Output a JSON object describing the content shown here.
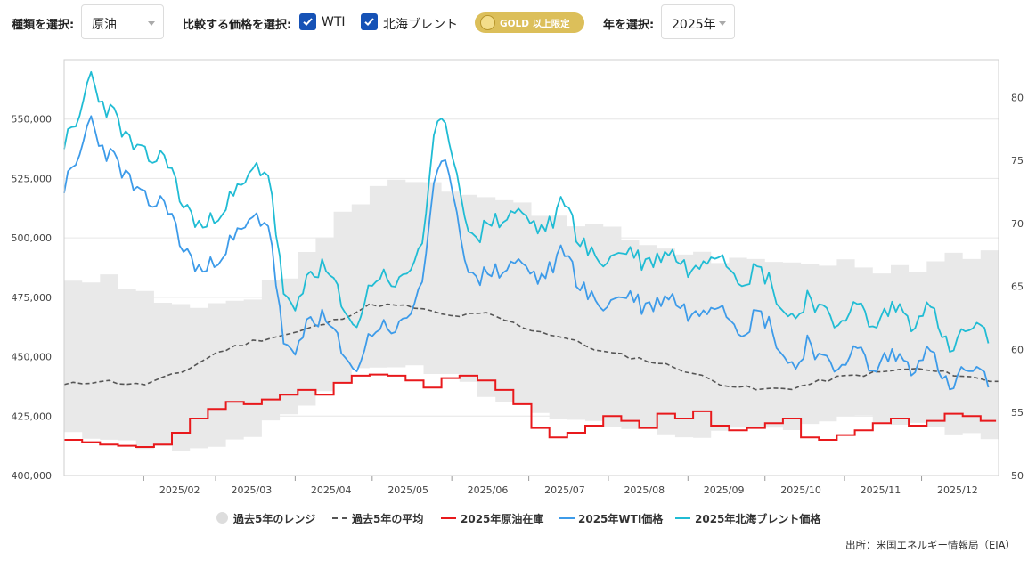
{
  "controls": {
    "type_label": "種類を選択:",
    "type_value": "原油",
    "compare_label": "比較する価格を選択:",
    "wti_label": "WTI",
    "wti_checked": true,
    "brent_label": "北海ブレント",
    "brent_checked": true,
    "gold_badge": "GOLD 以上限定",
    "year_label": "年を選択:",
    "year_value": "2025年"
  },
  "colors": {
    "range": "#e9e9e9",
    "average": "#555555",
    "inventory": "#e8191c",
    "wti": "#3d9be9",
    "brent": "#20bcd4",
    "checkbox": "#1652b6",
    "gold": "#dcbf5a"
  },
  "chart_data": {
    "type": "line",
    "x_ticks": [
      "2025/02",
      "2025/03",
      "2025/04",
      "2025/05",
      "2025/06",
      "2025/07",
      "2025/08",
      "2025/09",
      "2025/10",
      "2025/11",
      "2025/12"
    ],
    "y_left": {
      "ticks": [
        "400,000",
        "425,000",
        "450,000",
        "475,000",
        "500,000",
        "525,000",
        "550,000"
      ],
      "range": [
        400000,
        575000
      ]
    },
    "y_right": {
      "ticks": [
        "50",
        "55",
        "60",
        "65",
        "70",
        "75",
        "80"
      ],
      "range": [
        50,
        83
      ]
    },
    "grid": true,
    "legend_position": "bottom",
    "legend": [
      "過去5年のレンジ",
      "過去5年の平均",
      "2025年原油在庫",
      "2025年WTI価格",
      "2025年北海ブレント価格"
    ],
    "series": [
      {
        "name": "過去5年のレンジ",
        "kind": "band",
        "axis": "left",
        "day": [
          0,
          14,
          30,
          45,
          60,
          75,
          90,
          105,
          120,
          135,
          150,
          165,
          180,
          195,
          210,
          225,
          240,
          255,
          270,
          285,
          300,
          315,
          330,
          345,
          360
        ],
        "lower": [
          418000,
          415000,
          411000,
          412000,
          414000,
          420000,
          430000,
          440000,
          447000,
          445000,
          440000,
          432000,
          428000,
          424000,
          421000,
          418000,
          417000,
          418000,
          419000,
          422000,
          424000,
          423000,
          420000,
          417000,
          416000
        ],
        "upper": [
          482000,
          485000,
          476000,
          470000,
          472000,
          478000,
          490000,
          510000,
          523000,
          526000,
          521000,
          516000,
          512000,
          508000,
          502000,
          497000,
          494000,
          490000,
          488000,
          490000,
          490000,
          488000,
          488000,
          494000,
          492000
        ]
      },
      {
        "name": "過去5年の平均",
        "kind": "dashed",
        "axis": "left",
        "day": [
          0,
          14,
          30,
          45,
          60,
          75,
          90,
          105,
          120,
          135,
          150,
          165,
          180,
          195,
          210,
          225,
          240,
          255,
          270,
          285,
          300,
          315,
          330,
          345,
          360
        ],
        "values": [
          438000,
          440000,
          438000,
          443000,
          452000,
          457000,
          460000,
          465000,
          472000,
          471000,
          467000,
          468000,
          462000,
          458000,
          452000,
          449000,
          445000,
          439000,
          436000,
          437000,
          441000,
          443000,
          445000,
          443000,
          440000
        ]
      },
      {
        "name": "2025年原油在庫",
        "kind": "line",
        "axis": "left",
        "day": [
          0,
          7,
          14,
          21,
          28,
          35,
          42,
          49,
          56,
          63,
          70,
          77,
          84,
          91,
          98,
          105,
          112,
          119,
          126,
          133,
          140,
          147,
          154,
          161,
          168,
          175,
          182,
          189,
          196,
          203,
          210,
          217,
          224,
          231,
          238,
          245,
          252,
          259,
          266,
          273,
          280,
          287,
          294,
          301,
          308,
          315,
          322,
          329,
          336,
          343,
          350,
          357
        ],
        "values": [
          415000,
          414000,
          413000,
          412500,
          412000,
          413000,
          418000,
          424000,
          428000,
          431000,
          430000,
          432000,
          434000,
          436000,
          434000,
          439000,
          442000,
          442500,
          442000,
          440000,
          437000,
          441000,
          442000,
          440000,
          436000,
          430000,
          420000,
          416000,
          418000,
          421000,
          425000,
          423000,
          420000,
          426000,
          424000,
          427000,
          421000,
          419000,
          420000,
          422000,
          424000,
          416000,
          415000,
          417000,
          419000,
          422000,
          424000,
          421000,
          423000,
          426000,
          425000,
          423000
        ]
      },
      {
        "name": "2025年WTI価格",
        "kind": "line",
        "axis": "right",
        "day": [
          0,
          5,
          10,
          15,
          20,
          25,
          30,
          35,
          40,
          45,
          50,
          55,
          60,
          65,
          70,
          75,
          80,
          85,
          90,
          95,
          100,
          105,
          110,
          115,
          120,
          125,
          130,
          135,
          140,
          145,
          150,
          155,
          160,
          165,
          170,
          175,
          180,
          185,
          190,
          195,
          200,
          205,
          210,
          215,
          220,
          225,
          230,
          235,
          240,
          245,
          250,
          255,
          260,
          265,
          270,
          275,
          280,
          285,
          290,
          295,
          300,
          305,
          310,
          315,
          320,
          325,
          330,
          335,
          340,
          345,
          350,
          355,
          360
        ],
        "values": [
          73.0,
          74.5,
          78.5,
          76.0,
          75.0,
          73.5,
          72.0,
          71.5,
          71.8,
          68.5,
          67.0,
          66.0,
          67.5,
          68.5,
          69.5,
          70.5,
          70.0,
          61.0,
          59.0,
          62.5,
          62.5,
          61.5,
          58.5,
          59.0,
          61.5,
          62.0,
          61.5,
          63.0,
          66.0,
          74.0,
          74.5,
          68.5,
          65.0,
          66.5,
          66.0,
          67.0,
          66.5,
          65.5,
          66.5,
          68.0,
          65.5,
          64.0,
          63.5,
          64.0,
          64.5,
          63.5,
          63.5,
          64.5,
          63.5,
          62.5,
          63.5,
          64.0,
          62.5,
          61.5,
          63.0,
          62.0,
          59.5,
          58.5,
          61.0,
          59.0,
          58.5,
          59.5,
          60.0,
          58.0,
          59.5,
          59.5,
          58.5,
          60.0,
          59.0,
          56.5,
          58.5,
          58.0,
          57.5
        ]
      },
      {
        "name": "2025年北海ブレント価格",
        "kind": "line",
        "axis": "right",
        "day": [
          0,
          5,
          10,
          15,
          20,
          25,
          30,
          35,
          40,
          45,
          50,
          55,
          60,
          65,
          70,
          75,
          80,
          85,
          90,
          95,
          100,
          105,
          110,
          115,
          120,
          125,
          130,
          135,
          140,
          145,
          150,
          155,
          160,
          165,
          170,
          175,
          180,
          185,
          190,
          195,
          200,
          205,
          210,
          215,
          220,
          225,
          230,
          235,
          240,
          245,
          250,
          255,
          260,
          265,
          270,
          275,
          280,
          285,
          290,
          295,
          300,
          305,
          310,
          315,
          320,
          325,
          330,
          335,
          340,
          345,
          350,
          355,
          360
        ],
        "values": [
          76.5,
          77.5,
          82.0,
          79.5,
          78.5,
          76.5,
          75.5,
          75.0,
          75.5,
          72.0,
          70.5,
          69.5,
          71.0,
          72.0,
          73.0,
          74.5,
          74.0,
          65.0,
          62.5,
          66.0,
          66.5,
          65.5,
          62.0,
          62.5,
          65.5,
          66.0,
          65.0,
          66.5,
          69.0,
          78.0,
          77.0,
          72.0,
          68.0,
          70.5,
          70.0,
          71.0,
          70.5,
          69.5,
          70.0,
          72.0,
          69.0,
          67.5,
          67.0,
          67.5,
          68.0,
          67.0,
          67.0,
          68.0,
          67.0,
          66.0,
          67.5,
          68.0,
          66.5,
          65.5,
          66.5,
          65.5,
          63.0,
          62.5,
          64.5,
          63.0,
          62.0,
          63.0,
          63.5,
          61.5,
          63.0,
          63.5,
          62.0,
          63.5,
          62.5,
          59.5,
          61.5,
          61.5,
          61.0
        ]
      }
    ]
  },
  "source": "出所：米国エネルギー情報局（EIA）"
}
